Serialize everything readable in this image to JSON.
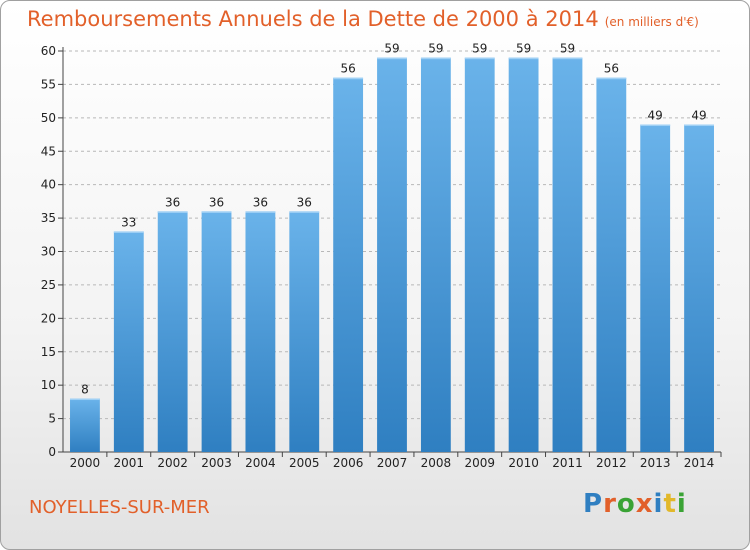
{
  "chart_data": {
    "type": "bar",
    "title": "Remboursements Annuels de la Dette de 2000 à 2014",
    "subtitle": "(en milliers d'€)",
    "categories": [
      "2000",
      "2001",
      "2002",
      "2003",
      "2004",
      "2005",
      "2006",
      "2007",
      "2008",
      "2009",
      "2010",
      "2011",
      "2012",
      "2013",
      "2014"
    ],
    "values": [
      8,
      33,
      36,
      36,
      36,
      36,
      56,
      59,
      59,
      59,
      59,
      59,
      56,
      49,
      49
    ],
    "ylim": [
      0,
      60
    ],
    "yticks": [
      0,
      5,
      10,
      15,
      20,
      25,
      30,
      35,
      40,
      45,
      50,
      55,
      60
    ],
    "xlabel": "",
    "ylabel": "",
    "grid": true,
    "colors": {
      "bar_light": "#6ab3ea",
      "bar_dark": "#2f7fc1",
      "grid": "#b8b8b8"
    }
  },
  "commune": "NOYELLES-SUR-MER",
  "brand": {
    "letters": [
      "P",
      "r",
      "o",
      "x",
      "i",
      "t",
      "i"
    ],
    "colors": [
      "#2f7fc1",
      "#e2602a",
      "#3aa335",
      "#e2602a",
      "#2f7fc1",
      "#e2b82a",
      "#3aa335"
    ]
  }
}
